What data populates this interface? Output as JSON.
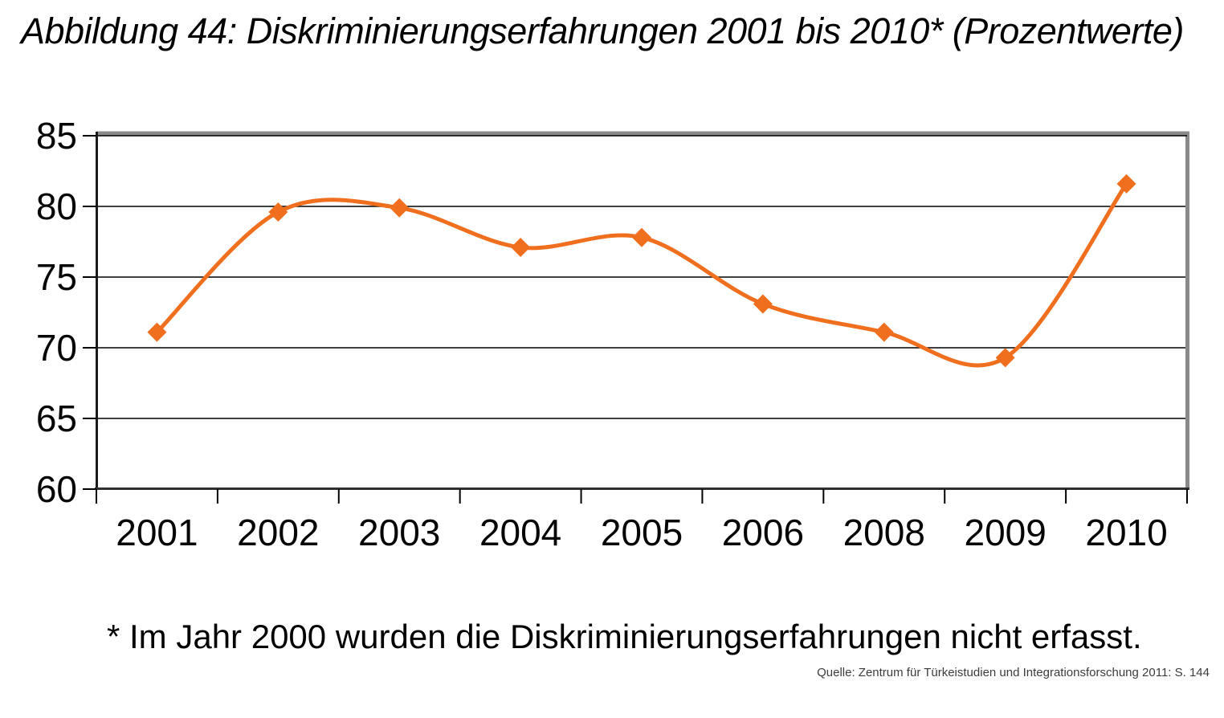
{
  "title": "Abbildung 44: Diskriminierungserfahrungen 2001 bis 2010* (Prozentwerte)",
  "footnote": "* Im Jahr 2000 wurden die Diskriminierungserfahrungen nicht erfasst.",
  "source": "Quelle: Zentrum für Türkeistudien und Integrationsforschung 2011: S. 144",
  "chart_data": {
    "type": "line",
    "title": "Abbildung 44: Diskriminierungserfahrungen 2001 bis 2010* (Prozentwerte)",
    "categories": [
      "2001",
      "2002",
      "2003",
      "2004",
      "2005",
      "2006",
      "2008",
      "2009",
      "2010"
    ],
    "values": [
      71.1,
      79.6,
      79.9,
      77.1,
      77.8,
      73.1,
      71.1,
      69.3,
      81.6
    ],
    "xlabel": "",
    "ylabel": "",
    "ylim": [
      60,
      85
    ],
    "yticks": [
      60,
      65,
      70,
      75,
      80,
      85
    ],
    "grid": "horizontal",
    "legend": "none",
    "smoothed": true,
    "marker": "diamond",
    "line_color": "#F06F1E",
    "marker_color": "#F06F1E",
    "gridline_color": "#000000",
    "axis_color": "#1a1a1a",
    "frame_color": "#8a8a8a",
    "label_color": "#050505"
  }
}
